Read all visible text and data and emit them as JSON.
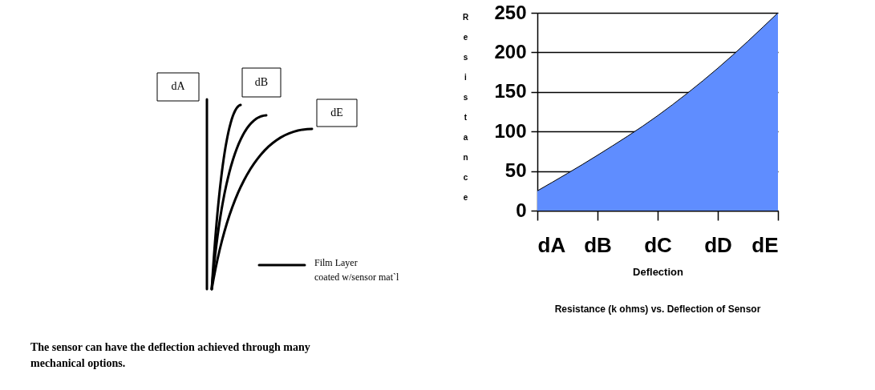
{
  "chart_data": [
    {
      "type": "other",
      "annotations": [
        "dA",
        "dB",
        "dE",
        "Film Layer",
        "coated w/sensor mat`l",
        "The sensor can have the deflection achieved through many mechanical options."
      ]
    },
    {
      "type": "area",
      "categories": [
        "dA",
        "dB",
        "dC",
        "dD",
        "dE"
      ],
      "series": [
        {
          "color": "#5f8dff",
          "values": [
            25,
            70,
            120,
            180,
            250
          ]
        }
      ],
      "ylim": [
        0,
        250
      ],
      "yticks": [
        0,
        50,
        100,
        150,
        200,
        250
      ],
      "grid": "y",
      "xlabel": "Deflection",
      "ylabel": "Resistance",
      "annotations": [
        "Resistance (k ohms) vs. Deflection of Sensor"
      ]
    }
  ]
}
